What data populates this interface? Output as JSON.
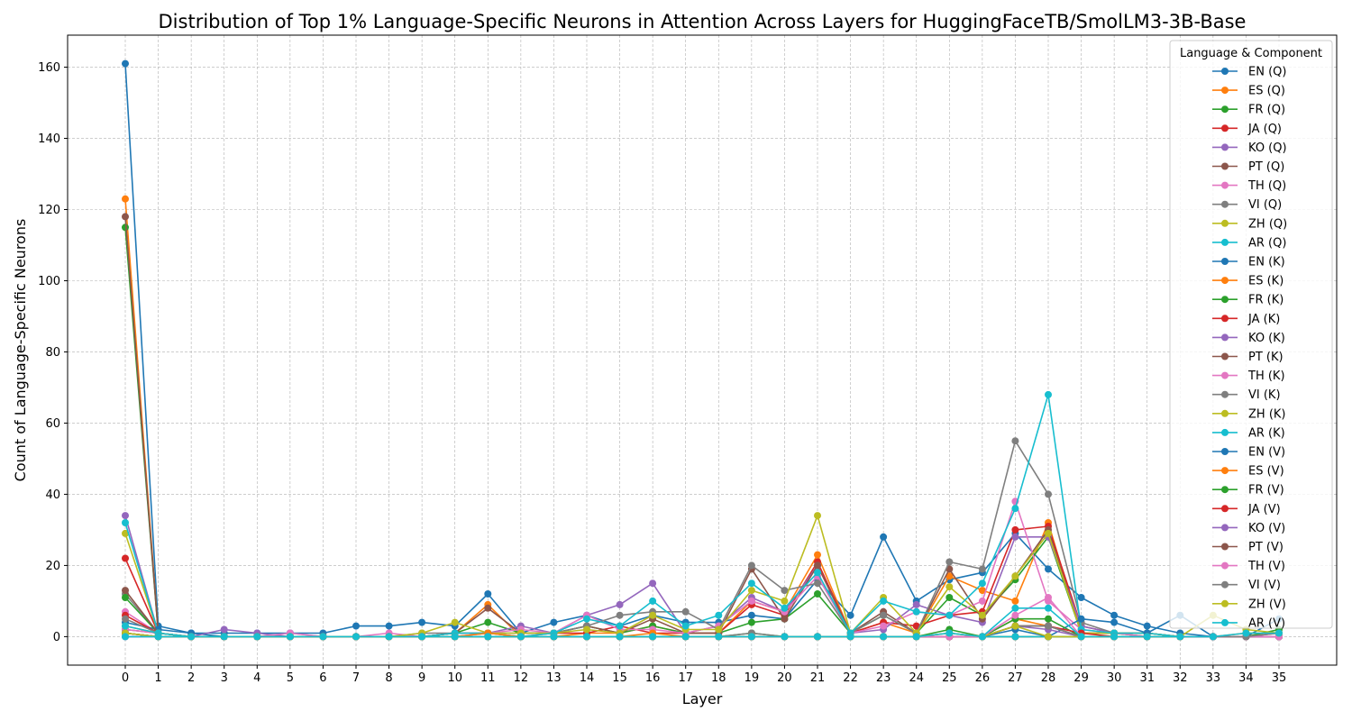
{
  "chart_data": {
    "type": "line",
    "title": "Distribution of Top 1% Language-Specific Neurons in Attention Across Layers for HuggingFaceTB/SmolLM3-3B-Base",
    "xlabel": "Layer",
    "ylabel": "Count of Language-Specific Neurons",
    "xlim": [
      -1.75,
      36.75
    ],
    "ylim": [
      -8,
      169
    ],
    "xticks": [
      0,
      1,
      2,
      3,
      4,
      5,
      6,
      7,
      8,
      9,
      10,
      11,
      12,
      13,
      14,
      15,
      16,
      17,
      18,
      19,
      20,
      21,
      22,
      23,
      24,
      25,
      26,
      27,
      28,
      29,
      30,
      31,
      32,
      33,
      34,
      35
    ],
    "yticks": [
      0,
      20,
      40,
      60,
      80,
      100,
      120,
      140,
      160
    ],
    "grid": true,
    "legend": {
      "title": "Language & Component",
      "placement": "top-right"
    },
    "x": [
      0,
      1,
      2,
      3,
      4,
      5,
      6,
      7,
      8,
      9,
      10,
      11,
      12,
      13,
      14,
      15,
      16,
      17,
      18,
      19,
      20,
      21,
      22,
      23,
      24,
      25,
      26,
      27,
      28,
      29,
      30,
      31,
      32,
      33,
      34,
      35
    ],
    "series": [
      {
        "name": "EN (Q)",
        "color": "#1f77b4",
        "values": [
          161,
          3,
          1,
          0,
          0,
          0,
          0,
          0,
          0,
          0,
          0,
          0,
          0,
          0,
          0,
          0,
          0,
          0,
          0,
          0,
          0,
          0,
          0,
          0,
          0,
          0,
          0,
          0,
          0,
          0,
          0,
          0,
          0,
          0,
          0,
          0
        ]
      },
      {
        "name": "ES (Q)",
        "color": "#ff7f0e",
        "values": [
          123,
          1,
          0,
          0,
          0,
          0,
          0,
          0,
          0,
          0,
          0,
          0,
          0,
          0,
          0,
          0,
          0,
          0,
          0,
          0,
          0,
          0,
          0,
          0,
          0,
          0,
          0,
          0,
          0,
          0,
          0,
          0,
          0,
          0,
          0,
          0
        ]
      },
      {
        "name": "FR (Q)",
        "color": "#2ca02c",
        "values": [
          115,
          1,
          0,
          0,
          0,
          0,
          0,
          0,
          0,
          0,
          0,
          0,
          0,
          0,
          0,
          0,
          0,
          0,
          0,
          0,
          0,
          0,
          0,
          0,
          0,
          0,
          0,
          0,
          0,
          0,
          0,
          0,
          0,
          0,
          0,
          0
        ]
      },
      {
        "name": "JA (Q)",
        "color": "#d62728",
        "values": [
          22,
          1,
          0,
          0,
          0,
          0,
          0,
          0,
          0,
          0,
          0,
          0,
          0,
          0,
          0,
          0,
          0,
          0,
          0,
          0,
          0,
          0,
          0,
          0,
          0,
          0,
          0,
          0,
          0,
          0,
          0,
          0,
          0,
          0,
          0,
          0
        ]
      },
      {
        "name": "KO (Q)",
        "color": "#9467bd",
        "values": [
          34,
          1,
          0,
          0,
          0,
          0,
          0,
          0,
          0,
          0,
          0,
          0,
          0,
          0,
          0,
          0,
          0,
          0,
          0,
          0,
          0,
          0,
          0,
          0,
          0,
          0,
          0,
          0,
          0,
          0,
          0,
          0,
          0,
          0,
          0,
          0
        ]
      },
      {
        "name": "PT (Q)",
        "color": "#8c564b",
        "values": [
          118,
          1,
          0,
          0,
          0,
          0,
          0,
          0,
          0,
          0,
          0,
          0,
          0,
          0,
          0,
          0,
          0,
          0,
          0,
          0,
          0,
          0,
          0,
          0,
          0,
          0,
          0,
          0,
          0,
          0,
          0,
          0,
          0,
          0,
          0,
          0
        ]
      },
      {
        "name": "TH (Q)",
        "color": "#e377c2",
        "values": [
          7,
          1,
          0,
          0,
          0,
          1,
          0,
          0,
          0,
          0,
          0,
          0,
          0,
          0,
          0,
          0,
          0,
          0,
          0,
          0,
          0,
          0,
          0,
          0,
          0,
          0,
          0,
          0,
          0,
          0,
          0,
          0,
          0,
          0,
          0,
          0
        ]
      },
      {
        "name": "VI (Q)",
        "color": "#7f7f7f",
        "values": [
          12,
          1,
          0,
          0,
          0,
          0,
          0,
          0,
          0,
          0,
          0,
          0,
          0,
          0,
          0,
          0,
          0,
          0,
          0,
          0,
          0,
          0,
          0,
          0,
          0,
          0,
          0,
          0,
          0,
          0,
          0,
          0,
          0,
          0,
          0,
          0
        ]
      },
      {
        "name": "ZH (Q)",
        "color": "#bcbd22",
        "values": [
          29,
          1,
          0,
          0,
          0,
          0,
          0,
          0,
          0,
          0,
          0,
          0,
          0,
          0,
          0,
          0,
          0,
          0,
          0,
          0,
          0,
          0,
          0,
          0,
          0,
          0,
          0,
          0,
          0,
          0,
          0,
          0,
          0,
          0,
          0,
          0
        ]
      },
      {
        "name": "AR (Q)",
        "color": "#17becf",
        "values": [
          32,
          1,
          0,
          0,
          0,
          0,
          0,
          0,
          0,
          0,
          0,
          0,
          0,
          0,
          0,
          0,
          0,
          0,
          0,
          0,
          0,
          0,
          0,
          0,
          0,
          0,
          0,
          0,
          0,
          0,
          0,
          0,
          0,
          0,
          0,
          0
        ]
      },
      {
        "name": "EN (K)",
        "color": "#1f77b4",
        "values": [
          4,
          2,
          1,
          1,
          1,
          1,
          1,
          3,
          3,
          4,
          3,
          12,
          1,
          4,
          6,
          3,
          6,
          4,
          4,
          6,
          5,
          16,
          6,
          28,
          10,
          16,
          18,
          29,
          19,
          11,
          6,
          3,
          1,
          0,
          0,
          0
        ]
      },
      {
        "name": "ES (K)",
        "color": "#ff7f0e",
        "values": [
          2,
          1,
          0,
          0,
          0,
          0,
          0,
          0,
          0,
          0,
          1,
          9,
          0,
          0,
          1,
          1,
          3,
          1,
          1,
          10,
          7,
          23,
          1,
          4,
          1,
          17,
          13,
          10,
          32,
          1,
          1,
          1,
          0,
          0,
          0,
          0
        ]
      },
      {
        "name": "FR (K)",
        "color": "#2ca02c",
        "values": [
          11,
          1,
          0,
          0,
          0,
          0,
          0,
          0,
          0,
          0,
          1,
          4,
          1,
          1,
          3,
          1,
          3,
          1,
          1,
          4,
          5,
          12,
          1,
          6,
          1,
          11,
          6,
          16,
          28,
          1,
          1,
          0,
          0,
          0,
          0,
          0
        ]
      },
      {
        "name": "JA (K)",
        "color": "#d62728",
        "values": [
          6,
          1,
          0,
          0,
          0,
          0,
          0,
          0,
          0,
          0,
          1,
          1,
          0,
          1,
          1,
          3,
          1,
          1,
          1,
          9,
          6,
          21,
          1,
          4,
          3,
          6,
          7,
          30,
          31,
          3,
          1,
          1,
          0,
          0,
          0,
          0
        ]
      },
      {
        "name": "KO (K)",
        "color": "#9467bd",
        "values": [
          2,
          1,
          0,
          2,
          1,
          0,
          0,
          0,
          0,
          0,
          0,
          1,
          3,
          1,
          6,
          9,
          15,
          1,
          3,
          11,
          7,
          20,
          1,
          2,
          9,
          6,
          4,
          28,
          28,
          3,
          1,
          0,
          0,
          0,
          0,
          0
        ]
      },
      {
        "name": "PT (K)",
        "color": "#8c564b",
        "values": [
          13,
          1,
          0,
          0,
          0,
          0,
          0,
          0,
          0,
          0,
          1,
          8,
          1,
          1,
          3,
          1,
          5,
          1,
          1,
          19,
          5,
          20,
          1,
          7,
          1,
          19,
          5,
          17,
          30,
          1,
          1,
          1,
          0,
          0,
          0,
          0
        ]
      },
      {
        "name": "TH (K)",
        "color": "#e377c2",
        "values": [
          2,
          1,
          0,
          0,
          0,
          1,
          0,
          0,
          1,
          0,
          0,
          1,
          2,
          1,
          6,
          2,
          2,
          1,
          3,
          10,
          7,
          17,
          1,
          3,
          7,
          6,
          10,
          38,
          10,
          2,
          1,
          0,
          0,
          0,
          0,
          0
        ]
      },
      {
        "name": "VI (K)",
        "color": "#7f7f7f",
        "values": [
          5,
          1,
          0,
          0,
          0,
          0,
          0,
          0,
          0,
          1,
          1,
          1,
          1,
          1,
          3,
          6,
          7,
          7,
          2,
          20,
          13,
          15,
          1,
          6,
          1,
          21,
          19,
          55,
          40,
          4,
          1,
          1,
          0,
          0,
          0,
          0
        ]
      },
      {
        "name": "ZH (K)",
        "color": "#bcbd22",
        "values": [
          3,
          1,
          0,
          0,
          0,
          0,
          0,
          0,
          0,
          1,
          4,
          1,
          1,
          1,
          2,
          1,
          6,
          2,
          2,
          13,
          10,
          34,
          1,
          11,
          1,
          14,
          6,
          17,
          29,
          1,
          1,
          1,
          0,
          0,
          0,
          0
        ]
      },
      {
        "name": "AR (K)",
        "color": "#17becf",
        "values": [
          3,
          1,
          0,
          0,
          0,
          0,
          0,
          0,
          0,
          0,
          1,
          1,
          0,
          1,
          5,
          3,
          10,
          3,
          6,
          15,
          8,
          18,
          1,
          10,
          7,
          6,
          15,
          36,
          68,
          2,
          1,
          1,
          0,
          0,
          0,
          0
        ]
      },
      {
        "name": "EN (V)",
        "color": "#1f77b4",
        "values": [
          0,
          0,
          0,
          0,
          0,
          0,
          0,
          0,
          0,
          0,
          0,
          0,
          0,
          0,
          0,
          0,
          0,
          0,
          0,
          0,
          0,
          0,
          0,
          0,
          0,
          0,
          0,
          2,
          0,
          5,
          4,
          1,
          6,
          0,
          0,
          5
        ]
      },
      {
        "name": "ES (V)",
        "color": "#ff7f0e",
        "values": [
          1,
          0,
          0,
          0,
          0,
          0,
          0,
          0,
          0,
          0,
          0,
          1,
          0,
          0,
          0,
          0,
          1,
          0,
          0,
          0,
          0,
          0,
          0,
          0,
          0,
          0,
          0,
          5,
          3,
          0,
          0,
          0,
          0,
          0,
          1,
          1
        ]
      },
      {
        "name": "FR (V)",
        "color": "#2ca02c",
        "values": [
          1,
          0,
          0,
          0,
          0,
          0,
          0,
          0,
          0,
          0,
          0,
          0,
          0,
          0,
          0,
          0,
          0,
          0,
          0,
          1,
          0,
          0,
          0,
          0,
          0,
          2,
          0,
          5,
          5,
          0,
          0,
          0,
          0,
          0,
          0,
          2
        ]
      },
      {
        "name": "JA (V)",
        "color": "#d62728",
        "values": [
          1,
          0,
          0,
          0,
          0,
          0,
          0,
          0,
          0,
          0,
          0,
          0,
          0,
          0,
          0,
          0,
          0,
          0,
          0,
          0,
          0,
          0,
          0,
          0,
          0,
          0,
          0,
          3,
          3,
          1,
          0,
          0,
          0,
          0,
          0,
          0
        ]
      },
      {
        "name": "KO (V)",
        "color": "#9467bd",
        "values": [
          1,
          0,
          0,
          0,
          0,
          0,
          0,
          0,
          0,
          0,
          0,
          0,
          0,
          0,
          0,
          0,
          0,
          0,
          0,
          0,
          0,
          0,
          0,
          0,
          0,
          0,
          0,
          3,
          2,
          0,
          0,
          0,
          0,
          0,
          0,
          0
        ]
      },
      {
        "name": "PT (V)",
        "color": "#8c564b",
        "values": [
          1,
          0,
          0,
          0,
          0,
          0,
          0,
          0,
          0,
          0,
          0,
          0,
          0,
          0,
          0,
          0,
          0,
          0,
          0,
          0,
          0,
          0,
          0,
          0,
          0,
          0,
          0,
          3,
          3,
          0,
          0,
          0,
          0,
          0,
          0,
          1
        ]
      },
      {
        "name": "TH (V)",
        "color": "#e377c2",
        "values": [
          0,
          0,
          0,
          0,
          0,
          0,
          0,
          0,
          0,
          0,
          0,
          0,
          0,
          0,
          0,
          0,
          0,
          0,
          0,
          0,
          0,
          0,
          0,
          0,
          0,
          0,
          0,
          6,
          11,
          0,
          0,
          0,
          0,
          0,
          0,
          0
        ]
      },
      {
        "name": "VI (V)",
        "color": "#7f7f7f",
        "values": [
          1,
          0,
          0,
          0,
          0,
          0,
          0,
          0,
          0,
          0,
          0,
          0,
          0,
          0,
          0,
          0,
          0,
          0,
          0,
          1,
          0,
          0,
          0,
          0,
          0,
          1,
          0,
          3,
          3,
          0,
          0,
          0,
          0,
          0,
          0,
          1
        ]
      },
      {
        "name": "ZH (V)",
        "color": "#bcbd22",
        "values": [
          1,
          0,
          0,
          0,
          0,
          0,
          0,
          0,
          0,
          0,
          0,
          0,
          0,
          0,
          0,
          0,
          0,
          0,
          0,
          0,
          0,
          0,
          0,
          0,
          0,
          1,
          0,
          3,
          0,
          0,
          0,
          0,
          0,
          6,
          2,
          1
        ]
      },
      {
        "name": "AR (V)",
        "color": "#17becf",
        "values": [
          0,
          0,
          0,
          0,
          0,
          0,
          0,
          0,
          0,
          0,
          0,
          0,
          0,
          0,
          0,
          0,
          0,
          0,
          0,
          0,
          0,
          0,
          0,
          0,
          0,
          1,
          0,
          8,
          8,
          0,
          0,
          0,
          0,
          0,
          1,
          1
        ]
      }
    ]
  }
}
